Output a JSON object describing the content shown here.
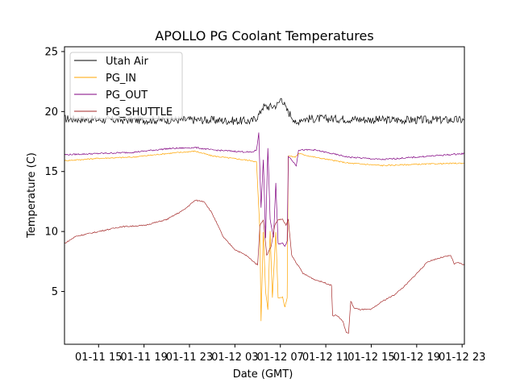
{
  "chart_data": {
    "type": "line",
    "title": "APOLLO PG Coolant Temperatures",
    "xlabel": "Date (GMT)",
    "ylabel": "Temperature (C)",
    "x_unit": "hours since 01-11 12:00",
    "xlim": [
      0,
      35.2
    ],
    "ylim": [
      0.6,
      25.4
    ],
    "x_ticks": [
      {
        "value": 3,
        "label": "01-11 15"
      },
      {
        "value": 7,
        "label": "01-11 19"
      },
      {
        "value": 11,
        "label": "01-11 23"
      },
      {
        "value": 15,
        "label": "01-12 03"
      },
      {
        "value": 19,
        "label": "01-12 07"
      },
      {
        "value": 23,
        "label": "01-12 11"
      },
      {
        "value": 27,
        "label": "01-12 15"
      },
      {
        "value": 31,
        "label": "01-12 19"
      },
      {
        "value": 35,
        "label": "01-12 23"
      }
    ],
    "y_ticks": [
      {
        "value": 5,
        "label": "5"
      },
      {
        "value": 10,
        "label": "10"
      },
      {
        "value": 15,
        "label": "15"
      },
      {
        "value": 20,
        "label": "20"
      },
      {
        "value": 25,
        "label": "25"
      }
    ],
    "legend_position": "top-left",
    "series": [
      {
        "name": "Utah Air",
        "color": "#000000",
        "points": [
          [
            0,
            19.4
          ],
          [
            4,
            19.3
          ],
          [
            8,
            19.3
          ],
          [
            12,
            19.3
          ],
          [
            16.5,
            19.2
          ],
          [
            17.2,
            19.8
          ],
          [
            17.4,
            20.4
          ],
          [
            18.2,
            20.4
          ],
          [
            18.8,
            20.6
          ],
          [
            19.1,
            21.2
          ],
          [
            19.5,
            20.2
          ],
          [
            20.2,
            19.4
          ],
          [
            20.4,
            18.8
          ],
          [
            20.7,
            19.4
          ],
          [
            24,
            19.4
          ],
          [
            28,
            19.3
          ],
          [
            32,
            19.3
          ],
          [
            35.2,
            19.3
          ]
        ],
        "noise": 0.35
      },
      {
        "name": "PG_IN",
        "color": "#FFA500",
        "points": [
          [
            0,
            15.9
          ],
          [
            3,
            16.1
          ],
          [
            6,
            16.2
          ],
          [
            9,
            16.5
          ],
          [
            11.5,
            16.7
          ],
          [
            13,
            16.3
          ],
          [
            16.5,
            15.9
          ],
          [
            16.9,
            15.8
          ],
          [
            17.2,
            10
          ],
          [
            17.3,
            2.5
          ],
          [
            17.5,
            10
          ],
          [
            17.7,
            5
          ],
          [
            17.9,
            3.5
          ],
          [
            18.1,
            10
          ],
          [
            18.3,
            4.5
          ],
          [
            18.6,
            10
          ],
          [
            18.8,
            4.5
          ],
          [
            19.2,
            4.5
          ],
          [
            19.4,
            3.7
          ],
          [
            19.6,
            4.5
          ],
          [
            19.7,
            16.3
          ],
          [
            20.3,
            16.2
          ],
          [
            20.6,
            16.5
          ],
          [
            22,
            16.2
          ],
          [
            25,
            15.7
          ],
          [
            28,
            15.5
          ],
          [
            31,
            15.6
          ],
          [
            35.2,
            15.7
          ]
        ],
        "noise": 0.05
      },
      {
        "name": "PG_OUT",
        "color": "#800080",
        "points": [
          [
            0,
            16.4
          ],
          [
            3,
            16.5
          ],
          [
            6,
            16.6
          ],
          [
            9,
            16.9
          ],
          [
            11.5,
            17.0
          ],
          [
            13,
            16.8
          ],
          [
            16.5,
            16.6
          ],
          [
            16.9,
            16.8
          ],
          [
            17.1,
            18.2
          ],
          [
            17.3,
            12
          ],
          [
            17.5,
            16
          ],
          [
            17.7,
            9.5
          ],
          [
            17.9,
            17
          ],
          [
            18.1,
            11
          ],
          [
            18.4,
            9.5
          ],
          [
            18.6,
            14
          ],
          [
            18.8,
            9.0
          ],
          [
            19.2,
            9.0
          ],
          [
            19.4,
            8.8
          ],
          [
            19.6,
            9.2
          ],
          [
            19.7,
            16.3
          ],
          [
            20.4,
            15.5
          ],
          [
            20.6,
            16.8
          ],
          [
            22,
            16.8
          ],
          [
            25,
            16.2
          ],
          [
            28,
            16.0
          ],
          [
            31,
            16.2
          ],
          [
            35.2,
            16.5
          ]
        ],
        "noise": 0.06
      },
      {
        "name": "PG_SHUTTLE",
        "color": "#A52A2A",
        "points": [
          [
            0,
            9.0
          ],
          [
            1,
            9.6
          ],
          [
            3,
            10.0
          ],
          [
            5,
            10.4
          ],
          [
            7,
            10.5
          ],
          [
            9,
            11.0
          ],
          [
            10.5,
            11.8
          ],
          [
            11.5,
            12.6
          ],
          [
            12.3,
            12.5
          ],
          [
            13,
            11.5
          ],
          [
            14,
            9.5
          ],
          [
            15,
            8.5
          ],
          [
            16,
            8.0
          ],
          [
            17,
            7.2
          ],
          [
            17.2,
            10.5
          ],
          [
            17.5,
            11
          ],
          [
            17.8,
            8
          ],
          [
            18.2,
            8.8
          ],
          [
            18.5,
            10.5
          ],
          [
            18.8,
            11
          ],
          [
            19.2,
            11
          ],
          [
            19.5,
            10.5
          ],
          [
            19.7,
            11
          ],
          [
            20.0,
            8
          ],
          [
            21,
            6.5
          ],
          [
            22,
            6.0
          ],
          [
            23,
            5.7
          ],
          [
            23.5,
            5.5
          ],
          [
            23.6,
            3.0
          ],
          [
            24,
            3.0
          ],
          [
            24.5,
            2.5
          ],
          [
            24.8,
            1.6
          ],
          [
            25,
            1.5
          ],
          [
            25.2,
            4.2
          ],
          [
            25.5,
            3.6
          ],
          [
            26,
            3.5
          ],
          [
            27,
            3.5
          ],
          [
            28,
            4.2
          ],
          [
            29,
            4.7
          ],
          [
            30,
            5.5
          ],
          [
            31,
            6.5
          ],
          [
            32,
            7.5
          ],
          [
            33,
            7.8
          ],
          [
            34,
            8.0
          ],
          [
            34.3,
            7.3
          ],
          [
            34.7,
            7.4
          ],
          [
            35.2,
            7.2
          ]
        ],
        "noise": 0.05
      }
    ]
  }
}
